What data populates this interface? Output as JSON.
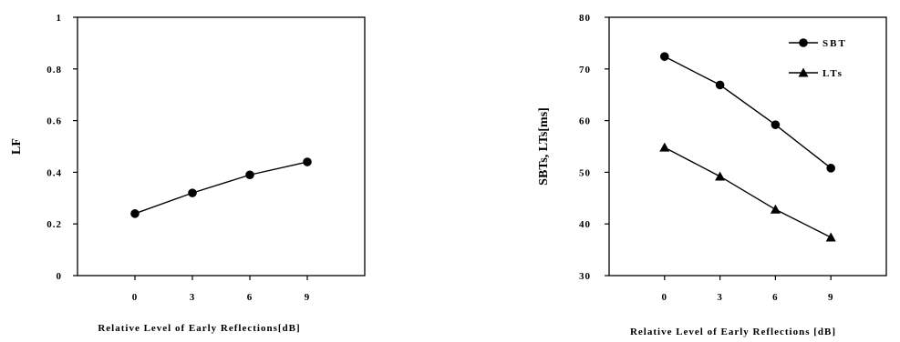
{
  "chart_data": [
    {
      "type": "line",
      "x": [
        0,
        3,
        6,
        9
      ],
      "x_tick_labels": [
        "0",
        "3",
        "6",
        "9"
      ],
      "xlim": [
        -3,
        12
      ],
      "ylim": [
        0,
        1
      ],
      "y_tick_labels": [
        "0",
        "0.2",
        "0.4",
        "0.6",
        "0.8",
        "1"
      ],
      "xlabel": "Relative Level of Early Reflections[dB]",
      "ylabel": "LF",
      "grid": false,
      "series": [
        {
          "marker": "circle",
          "values": [
            0.24,
            0.32,
            0.39,
            0.44
          ]
        }
      ]
    },
    {
      "type": "line",
      "x": [
        0,
        3,
        6,
        9
      ],
      "x_tick_labels": [
        "0",
        "3",
        "6",
        "9"
      ],
      "xlim": [
        -3,
        12
      ],
      "ylim": [
        30,
        80
      ],
      "y_tick_labels": [
        "30",
        "40",
        "50",
        "60",
        "70",
        "80"
      ],
      "xlabel": "Relative Level of Early Reflections [dB]",
      "ylabel": "SBTs, LTs[ms]",
      "grid": false,
      "legend": "top-right",
      "series": [
        {
          "name": "SBT",
          "marker": "circle",
          "values": [
            72.4,
            66.9,
            59.2,
            50.8
          ]
        },
        {
          "name": "LTs",
          "marker": "triangle",
          "values": [
            54.8,
            49.2,
            42.8,
            37.4
          ]
        }
      ]
    }
  ]
}
